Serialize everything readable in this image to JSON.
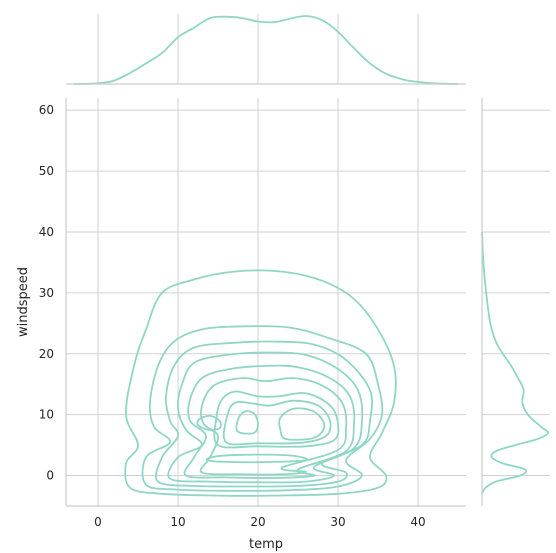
{
  "chart_data": {
    "type": "kde_jointplot",
    "xlabel": "temp",
    "ylabel": "windspeed",
    "xlim": [
      -4,
      46
    ],
    "ylim": [
      -5,
      62
    ],
    "x_ticks": [
      0,
      10,
      20,
      30,
      40
    ],
    "y_ticks": [
      0,
      10,
      20,
      30,
      40,
      50,
      60
    ],
    "grid": true,
    "color": "#8fd6c6",
    "joint_contours": [
      [
        [
          4,
          -2
        ],
        [
          8,
          -3
        ],
        [
          15,
          -3.3
        ],
        [
          22,
          -3.3
        ],
        [
          30,
          -3
        ],
        [
          35,
          -2
        ],
        [
          36,
          0
        ],
        [
          34,
          3
        ],
        [
          35.5,
          7
        ],
        [
          37,
          12
        ],
        [
          37,
          18
        ],
        [
          35,
          24
        ],
        [
          32,
          29
        ],
        [
          28,
          32
        ],
        [
          23,
          33.5
        ],
        [
          17,
          33.5
        ],
        [
          12,
          32.2
        ],
        [
          8,
          30
        ],
        [
          6,
          24
        ],
        [
          4.5,
          18
        ],
        [
          3.5,
          10
        ],
        [
          5,
          5
        ],
        [
          3.5,
          2
        ],
        [
          4,
          -2
        ]
      ],
      [
        [
          6,
          -1.5
        ],
        [
          10,
          -2.3
        ],
        [
          16,
          -2.5
        ],
        [
          24,
          -2.4
        ],
        [
          30,
          -1.8
        ],
        [
          33,
          0
        ],
        [
          31,
          2.5
        ],
        [
          34,
          6
        ],
        [
          35.5,
          10
        ],
        [
          35,
          15
        ],
        [
          33.5,
          20
        ],
        [
          29,
          22.5
        ],
        [
          24,
          24.3
        ],
        [
          18,
          24.5
        ],
        [
          13,
          24
        ],
        [
          9.5,
          22
        ],
        [
          7.5,
          18
        ],
        [
          6.5,
          12
        ],
        [
          7,
          8
        ],
        [
          9,
          5.5
        ],
        [
          6,
          3
        ],
        [
          6,
          -1.5
        ]
      ],
      [
        [
          7.5,
          -1
        ],
        [
          12,
          -1.7
        ],
        [
          18,
          -1.8
        ],
        [
          25,
          -1.7
        ],
        [
          30,
          -1
        ],
        [
          31,
          0.5
        ],
        [
          28,
          2
        ],
        [
          33,
          5
        ],
        [
          34,
          9
        ],
        [
          34,
          14
        ],
        [
          31,
          19
        ],
        [
          27,
          21.5
        ],
        [
          22,
          22
        ],
        [
          17,
          21.8
        ],
        [
          12,
          21
        ],
        [
          9.5,
          18
        ],
        [
          8.5,
          13
        ],
        [
          9,
          9
        ],
        [
          10,
          6.5
        ],
        [
          8,
          3
        ],
        [
          7.5,
          -1
        ]
      ],
      [
        [
          9,
          -0.5
        ],
        [
          14,
          -1
        ],
        [
          20,
          -1.1
        ],
        [
          26,
          -1
        ],
        [
          29.5,
          0
        ],
        [
          27,
          1.4
        ],
        [
          32,
          4.5
        ],
        [
          33,
          9
        ],
        [
          32.5,
          14
        ],
        [
          30,
          17.5
        ],
        [
          26,
          19.8
        ],
        [
          21,
          20.2
        ],
        [
          16,
          19.8
        ],
        [
          12,
          18.5
        ],
        [
          10.5,
          15
        ],
        [
          10,
          11
        ],
        [
          11,
          7.5
        ],
        [
          13,
          5
        ],
        [
          10,
          3
        ],
        [
          9,
          -0.5
        ]
      ],
      [
        [
          11,
          0
        ],
        [
          16,
          -0.3
        ],
        [
          22,
          -0.4
        ],
        [
          27,
          0
        ],
        [
          25,
          1
        ],
        [
          31,
          4
        ],
        [
          32,
          8.5
        ],
        [
          31.5,
          13
        ],
        [
          29,
          16
        ],
        [
          25,
          17.8
        ],
        [
          21,
          18
        ],
        [
          16.5,
          17.5
        ],
        [
          13,
          16
        ],
        [
          11.5,
          12.5
        ],
        [
          11.5,
          9
        ],
        [
          13.5,
          6.5
        ],
        [
          12,
          3
        ],
        [
          11,
          0
        ]
      ],
      [
        [
          13,
          0.5
        ],
        [
          18,
          0.2
        ],
        [
          23,
          0.2
        ],
        [
          26,
          0.6
        ],
        [
          23,
          1.3
        ],
        [
          30,
          4.2
        ],
        [
          31,
          8
        ],
        [
          30.5,
          12
        ],
        [
          28,
          14.8
        ],
        [
          24.5,
          16
        ],
        [
          21,
          15.5
        ],
        [
          18,
          16
        ],
        [
          14.5,
          14.8
        ],
        [
          13,
          11.5
        ],
        [
          13.2,
          8.5
        ],
        [
          15,
          6.5
        ],
        [
          14,
          3
        ],
        [
          13,
          0.5
        ]
      ],
      [
        [
          15,
          5
        ],
        [
          20,
          4.8
        ],
        [
          26,
          4.8
        ],
        [
          29.5,
          5.8
        ],
        [
          30,
          8.5
        ],
        [
          29,
          11.5
        ],
        [
          26,
          13.5
        ],
        [
          22.5,
          13
        ],
        [
          20,
          13
        ],
        [
          17.2,
          13.8
        ],
        [
          15.5,
          12.5
        ],
        [
          14.8,
          9.5
        ],
        [
          15,
          5
        ]
      ],
      [
        [
          16,
          5.5
        ],
        [
          20,
          5.3
        ],
        [
          25.5,
          5.4
        ],
        [
          28.5,
          6.5
        ],
        [
          29,
          9
        ],
        [
          27.5,
          11.5
        ],
        [
          24.5,
          12.3
        ],
        [
          21.5,
          11.5
        ],
        [
          19.5,
          11.8
        ],
        [
          17.2,
          12
        ],
        [
          16.2,
          10
        ],
        [
          16,
          5.5
        ]
      ],
      [
        [
          23.5,
          6
        ],
        [
          27,
          6.2
        ],
        [
          28.3,
          8.2
        ],
        [
          27,
          10.5
        ],
        [
          24.5,
          11
        ],
        [
          22.8,
          9.5
        ],
        [
          22.8,
          7.5
        ],
        [
          23.5,
          6
        ]
      ],
      [
        [
          17.5,
          7.2
        ],
        [
          19.5,
          7
        ],
        [
          20,
          8.5
        ],
        [
          19.5,
          10.2
        ],
        [
          18.3,
          10.5
        ],
        [
          17.5,
          9.2
        ],
        [
          17.5,
          7.2
        ]
      ],
      [
        [
          12.5,
          8.3
        ],
        [
          13.8,
          7.5
        ],
        [
          15.2,
          7.8
        ],
        [
          15.2,
          9
        ],
        [
          14,
          9.8
        ],
        [
          12.7,
          9.3
        ],
        [
          12.5,
          8.3
        ]
      ],
      [
        [
          14,
          2.4
        ],
        [
          20,
          2.2
        ],
        [
          26,
          2.5
        ],
        [
          24,
          3.3
        ],
        [
          18,
          3.4
        ],
        [
          14.5,
          3.1
        ],
        [
          14,
          2.4
        ]
      ]
    ],
    "x_marginal": {
      "x": [
        -3,
        0,
        2,
        4,
        6,
        8,
        10,
        12,
        14,
        16,
        18,
        20,
        22,
        24,
        26,
        28,
        30,
        32,
        34,
        36,
        38,
        40,
        42,
        45
      ],
      "density": [
        0,
        0.01,
        0.05,
        0.16,
        0.3,
        0.45,
        0.68,
        0.82,
        0.96,
        0.98,
        0.96,
        0.91,
        0.9,
        0.95,
        0.99,
        0.93,
        0.76,
        0.52,
        0.3,
        0.15,
        0.07,
        0.03,
        0.01,
        0
      ]
    },
    "y_marginal": {
      "y": [
        -3,
        -2,
        -1,
        0,
        1,
        2,
        3,
        4,
        5,
        6,
        7,
        8,
        10,
        12,
        14,
        16,
        18,
        20,
        22,
        25,
        30,
        35,
        40
      ],
      "density": [
        0,
        0.05,
        0.2,
        0.55,
        0.62,
        0.3,
        0.14,
        0.2,
        0.48,
        0.8,
        0.95,
        0.85,
        0.66,
        0.58,
        0.6,
        0.52,
        0.42,
        0.3,
        0.2,
        0.12,
        0.06,
        0.02,
        0
      ]
    }
  }
}
